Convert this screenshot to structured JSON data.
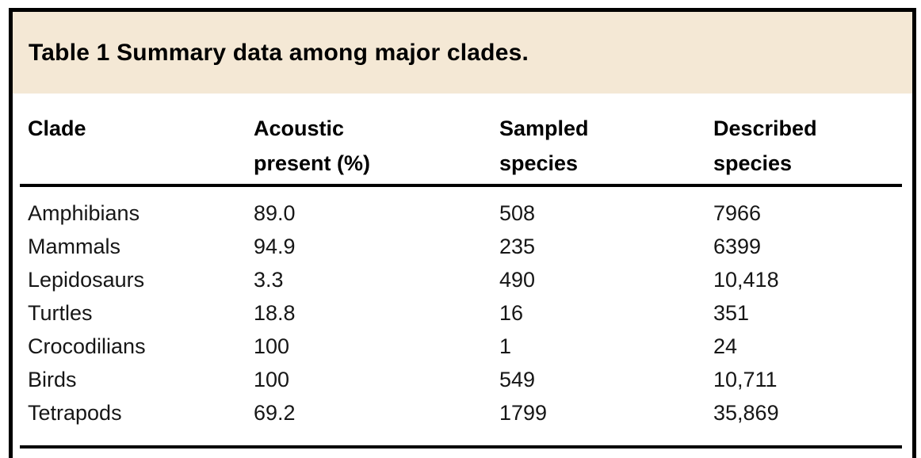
{
  "table": {
    "title": "Table 1 Summary data among major clades.",
    "header": [
      {
        "line1": "Clade",
        "line2": ""
      },
      {
        "line1": "Acoustic",
        "line2": "present (%)"
      },
      {
        "line1": "Sampled",
        "line2": "species"
      },
      {
        "line1": "Described",
        "line2": "species"
      }
    ],
    "rows": [
      [
        "Amphibians",
        "89.0",
        "508",
        "7966"
      ],
      [
        "Mammals",
        "94.9",
        "235",
        "6399"
      ],
      [
        "Lepidosaurs",
        "3.3",
        "490",
        "10,418"
      ],
      [
        "Turtles",
        "18.8",
        "16",
        "351"
      ],
      [
        "Crocodilians",
        "100",
        "1",
        "24"
      ],
      [
        "Birds",
        "100",
        "549",
        "10,711"
      ],
      [
        "Tetrapods",
        "69.2",
        "1799",
        "35,869"
      ]
    ]
  },
  "colors": {
    "title_band_bg": "#f4e8d5",
    "frame_border": "#000000",
    "rule": "#000000",
    "title_text": "#000000",
    "body_text": "#161616",
    "page_bg": "#ffffff"
  }
}
